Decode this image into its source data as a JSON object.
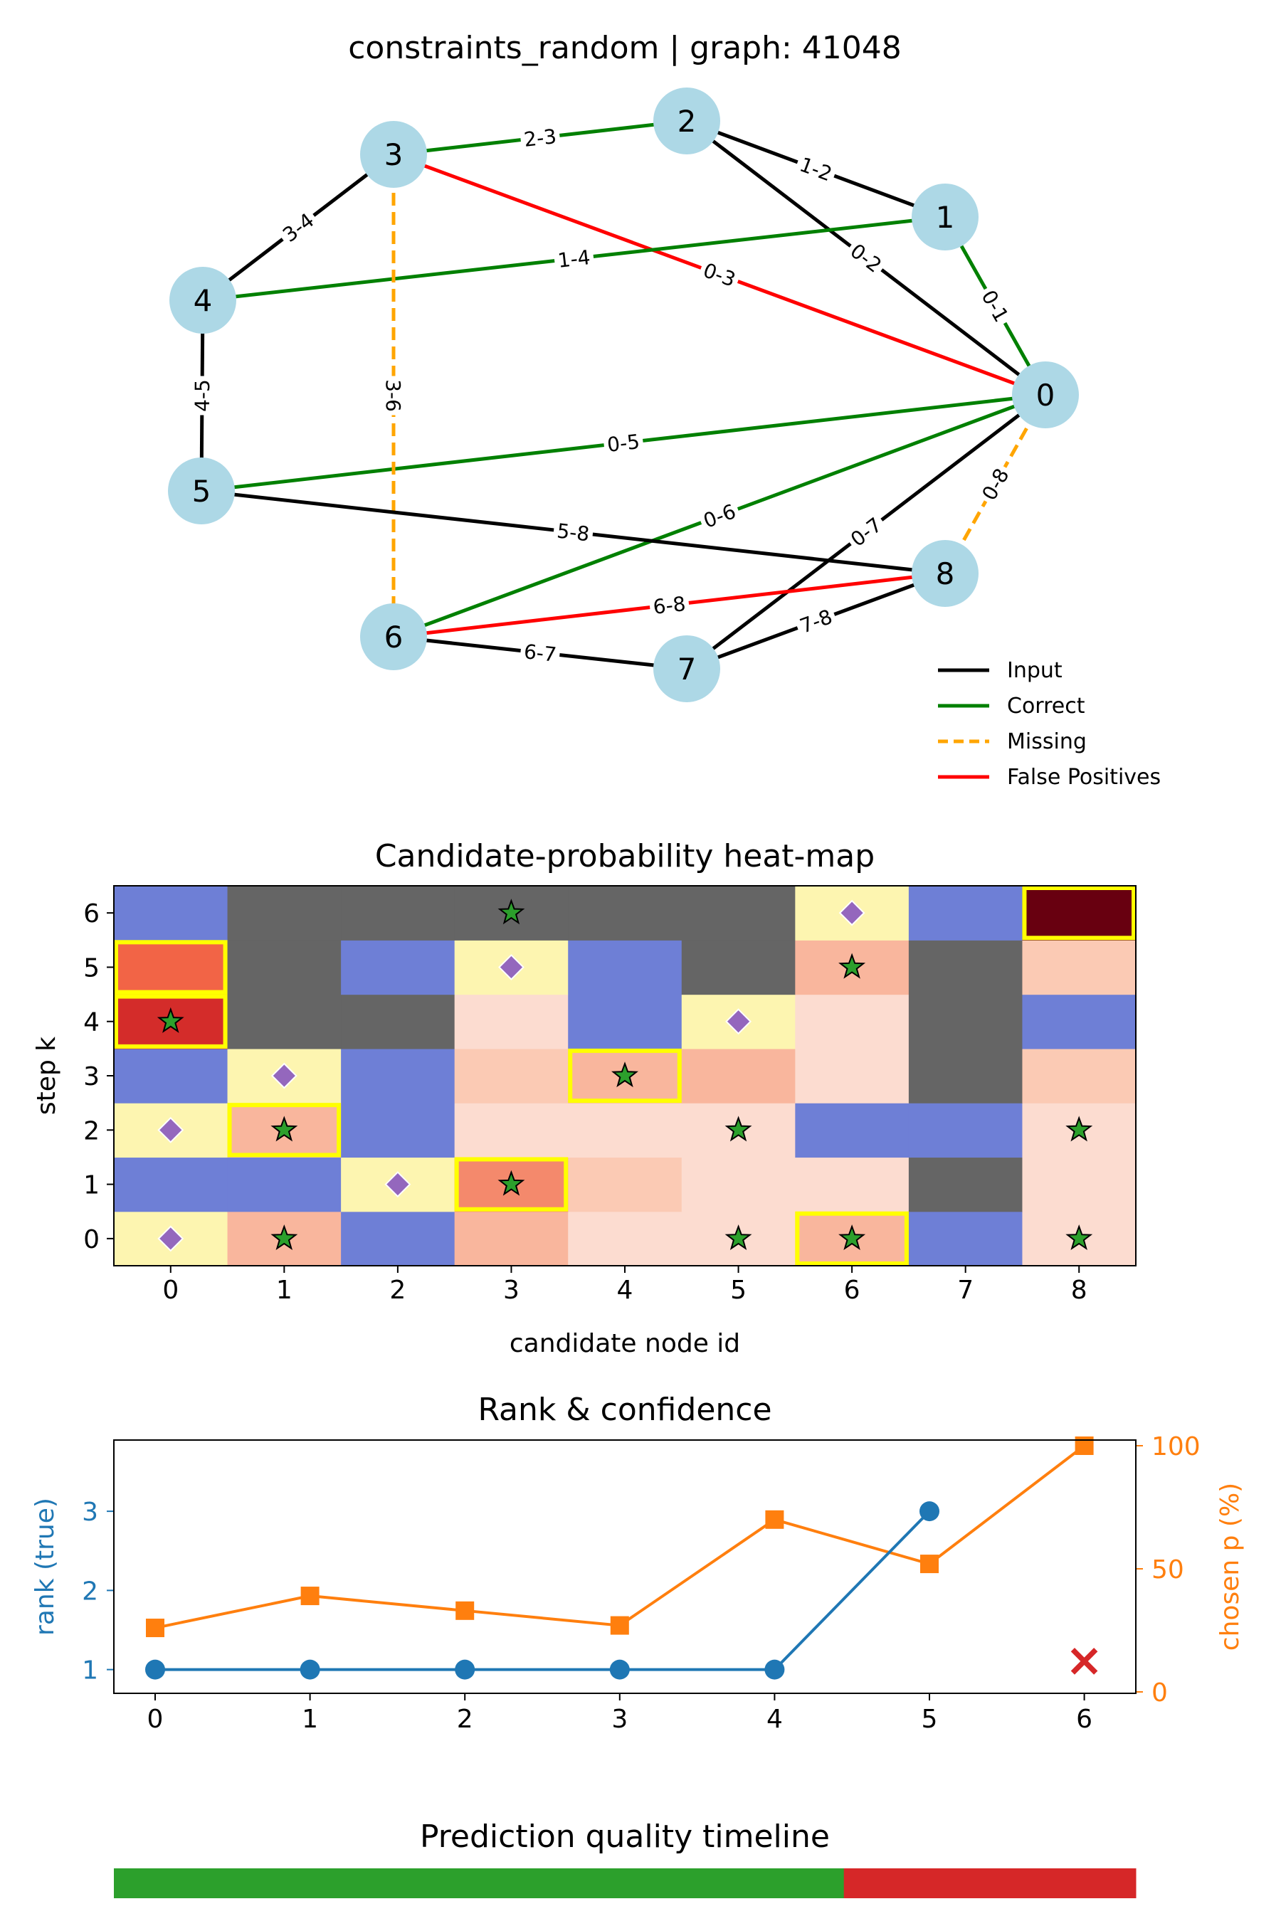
{
  "chart_data": [
    {
      "type": "graph",
      "title": "constraints_random | graph: 41048",
      "nodes": [
        "0",
        "1",
        "2",
        "3",
        "4",
        "5",
        "6",
        "7",
        "8"
      ],
      "edges": [
        {
          "label": "0-1",
          "source": "0",
          "target": "1",
          "category": "correct"
        },
        {
          "label": "0-2",
          "source": "0",
          "target": "2",
          "category": "input"
        },
        {
          "label": "0-3",
          "source": "0",
          "target": "3",
          "category": "false_positive"
        },
        {
          "label": "0-5",
          "source": "0",
          "target": "5",
          "category": "correct"
        },
        {
          "label": "0-6",
          "source": "0",
          "target": "6",
          "category": "correct"
        },
        {
          "label": "0-7",
          "source": "0",
          "target": "7",
          "category": "input"
        },
        {
          "label": "0-8",
          "source": "0",
          "target": "8",
          "category": "missing"
        },
        {
          "label": "1-2",
          "source": "1",
          "target": "2",
          "category": "input"
        },
        {
          "label": "1-4",
          "source": "1",
          "target": "4",
          "category": "correct"
        },
        {
          "label": "2-3",
          "source": "2",
          "target": "3",
          "category": "correct"
        },
        {
          "label": "3-4",
          "source": "3",
          "target": "4",
          "category": "input"
        },
        {
          "label": "3-6",
          "source": "3",
          "target": "6",
          "category": "missing"
        },
        {
          "label": "4-5",
          "source": "4",
          "target": "5",
          "category": "input"
        },
        {
          "label": "5-8",
          "source": "5",
          "target": "8",
          "category": "input"
        },
        {
          "label": "6-7",
          "source": "6",
          "target": "7",
          "category": "input"
        },
        {
          "label": "6-8",
          "source": "6",
          "target": "8",
          "category": "false_positive"
        },
        {
          "label": "7-8",
          "source": "7",
          "target": "8",
          "category": "input"
        }
      ],
      "legend": [
        {
          "key": "input",
          "label": "Input",
          "color": "#000000",
          "dashed": false
        },
        {
          "key": "correct",
          "label": "Correct",
          "color": "#008000",
          "dashed": false
        },
        {
          "key": "missing",
          "label": "Missing",
          "color": "#ffa500",
          "dashed": true
        },
        {
          "key": "false_positive",
          "label": "False Positives",
          "color": "#ff0000",
          "dashed": false
        }
      ],
      "node_color": "#add8e6",
      "legend_position": "lower right"
    },
    {
      "type": "heatmap",
      "title": "Candidate-probability heat-map",
      "xlabel": "candidate node id",
      "ylabel": "step k",
      "x": [
        0,
        1,
        2,
        3,
        4,
        5,
        6,
        7,
        8
      ],
      "y": [
        0,
        1,
        2,
        3,
        4,
        5,
        6
      ],
      "cells": [
        [
          "yellow",
          "salmon",
          "blue",
          "salmon",
          "peach",
          "peach",
          "salmon",
          "blue",
          "peach"
        ],
        [
          "blue",
          "blue",
          "yellow",
          "coral",
          "lightsalmon",
          "peach",
          "peach",
          "gray",
          "peach"
        ],
        [
          "yellow",
          "salmon",
          "blue",
          "peach",
          "peach",
          "peach",
          "blue",
          "blue",
          "peach"
        ],
        [
          "blue",
          "yellow",
          "blue",
          "lightsalmon",
          "salmon",
          "salmon",
          "peach",
          "gray",
          "lightsalmon"
        ],
        [
          "red",
          "gray",
          "gray",
          "peach",
          "blue",
          "yellow",
          "peach",
          "gray",
          "blue"
        ],
        [
          "orangered",
          "gray",
          "blue",
          "yellow",
          "blue",
          "gray",
          "salmon",
          "gray",
          "lightsalmon"
        ],
        [
          "blue",
          "gray",
          "gray",
          "gray",
          "gray",
          "gray",
          "yellow",
          "blue",
          "darkred"
        ]
      ],
      "cell_colors": {
        "yellow": "#fdf5b0",
        "blue": "#6e7fd6",
        "gray": "#656565",
        "peach": "#fcdcd0",
        "lightsalmon": "#fbcab4",
        "salmon": "#f9b69d",
        "coral": "#f4896c",
        "orangered": "#f26446",
        "red": "#d42c2a",
        "darkred": "#680010"
      },
      "stars": [
        [
          0,
          1
        ],
        [
          0,
          5
        ],
        [
          0,
          6
        ],
        [
          0,
          8
        ],
        [
          1,
          3
        ],
        [
          2,
          1
        ],
        [
          2,
          5
        ],
        [
          2,
          8
        ],
        [
          3,
          4
        ],
        [
          4,
          0
        ],
        [
          5,
          6
        ],
        [
          6,
          3
        ]
      ],
      "diamonds": [
        [
          0,
          0
        ],
        [
          1,
          2
        ],
        [
          2,
          0
        ],
        [
          3,
          1
        ],
        [
          4,
          5
        ],
        [
          5,
          3
        ],
        [
          6,
          6
        ]
      ],
      "highlights": [
        [
          0,
          6
        ],
        [
          1,
          3
        ],
        [
          2,
          1
        ],
        [
          3,
          4
        ],
        [
          4,
          0
        ],
        [
          5,
          0
        ],
        [
          6,
          8
        ]
      ]
    },
    {
      "type": "line",
      "title": "Rank & confidence",
      "x": [
        0,
        1,
        2,
        3,
        4,
        5,
        6
      ],
      "series": [
        {
          "axis": "left",
          "color": "#1f77b4",
          "marker": "circle",
          "x": [
            0,
            1,
            2,
            3,
            4,
            5
          ],
          "values": [
            1,
            1,
            1,
            1,
            1,
            3
          ]
        },
        {
          "axis": "right",
          "color": "#ff7f0e",
          "marker": "square",
          "x": [
            0,
            1,
            2,
            3,
            4,
            5,
            6
          ],
          "values": [
            26,
            39,
            33,
            27,
            70,
            52,
            100
          ]
        }
      ],
      "miss_marker": {
        "x": 6,
        "p": 13,
        "symbol": "×",
        "color": "#d62728"
      },
      "ylabel_left": "rank (true)",
      "ylabel_right": "chosen p (%)",
      "ylim_left": [
        3.9,
        0.7
      ],
      "ylim_right": [
        0,
        100
      ],
      "yticks_left": [
        1,
        2,
        3
      ],
      "yticks_right": [
        0,
        50,
        100
      ],
      "xticks": [
        0,
        1,
        2,
        3,
        4,
        5,
        6
      ]
    },
    {
      "type": "bar",
      "title": "Prediction quality timeline",
      "segments": [
        {
          "steps": 5,
          "color": "#2ca02c"
        },
        {
          "steps": 2,
          "color": "#d62728"
        }
      ]
    }
  ]
}
